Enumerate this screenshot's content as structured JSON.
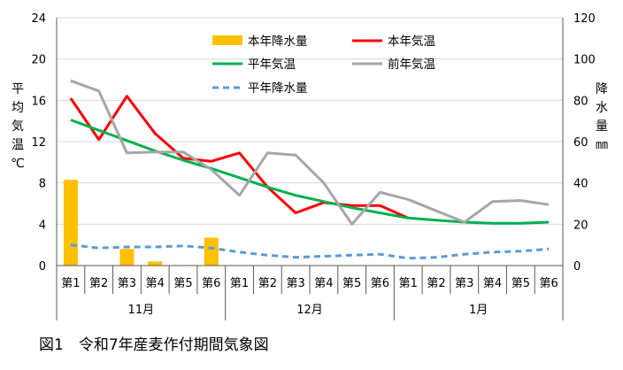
{
  "caption": "図1　令和7年産麦作付期間気象図",
  "chart_data": {
    "type": "bar+line",
    "categories": [
      "第1",
      "第2",
      "第3",
      "第4",
      "第5",
      "第6",
      "第1",
      "第2",
      "第3",
      "第4",
      "第5",
      "第6",
      "第1",
      "第2",
      "第3",
      "第4",
      "第5",
      "第6"
    ],
    "month_groups": [
      {
        "label": "11月",
        "count": 6
      },
      {
        "label": "12月",
        "count": 6
      },
      {
        "label": "1月",
        "count": 6
      }
    ],
    "y_left": {
      "label": "平均気温℃",
      "min": 0,
      "max": 24,
      "step": 4,
      "ticks": [
        "0",
        "4",
        "8",
        "12",
        "16",
        "20",
        "24"
      ]
    },
    "y_right": {
      "label": "降水量㎜",
      "min": 0,
      "max": 120,
      "step": 20,
      "ticks": [
        "0",
        "20",
        "40",
        "60",
        "80",
        "100",
        "120"
      ]
    },
    "series": [
      {
        "name": "本年降水量",
        "type": "bar",
        "axis": "right",
        "color": "#FFC000",
        "values": [
          41.5,
          0,
          8,
          2,
          0,
          13.5,
          0,
          0,
          0,
          0,
          0,
          0,
          0,
          0,
          0,
          0,
          0,
          0
        ]
      },
      {
        "name": "本年気温",
        "type": "line",
        "axis": "left",
        "color": "#FF0000",
        "dash": "solid",
        "values": [
          16.2,
          12.2,
          16.4,
          12.8,
          10.4,
          10.1,
          10.9,
          7.6,
          5.1,
          6.1,
          5.8,
          5.8,
          4.6,
          null,
          null,
          null,
          null,
          null
        ]
      },
      {
        "name": "平年気温",
        "type": "line",
        "axis": "left",
        "color": "#00B050",
        "dash": "solid",
        "values": [
          14.1,
          13.1,
          12.1,
          11.1,
          10.2,
          9.4,
          8.5,
          7.6,
          6.8,
          6.2,
          5.6,
          5.1,
          4.6,
          4.4,
          4.2,
          4.1,
          4.1,
          4.2
        ]
      },
      {
        "name": "前年気温",
        "type": "line",
        "axis": "left",
        "color": "#A6A6A6",
        "dash": "solid",
        "values": [
          17.9,
          16.9,
          10.9,
          11.0,
          11.0,
          9.3,
          6.8,
          10.9,
          10.7,
          8.0,
          4.0,
          7.1,
          6.4,
          5.3,
          4.2,
          6.2,
          6.3,
          5.9
        ]
      },
      {
        "name": "平年降水量",
        "type": "line",
        "axis": "right",
        "color": "#5B9BD5",
        "dash": "dashed",
        "values": [
          10,
          8.5,
          9,
          9,
          9.5,
          8.5,
          6.5,
          5,
          4,
          4.5,
          5,
          5.5,
          3.5,
          4,
          5.5,
          6.5,
          7,
          8
        ]
      }
    ],
    "legend_order": [
      "本年降水量",
      "本年気温",
      "平年気温",
      "前年気温",
      "平年降水量"
    ],
    "legend_position": "top-right"
  }
}
